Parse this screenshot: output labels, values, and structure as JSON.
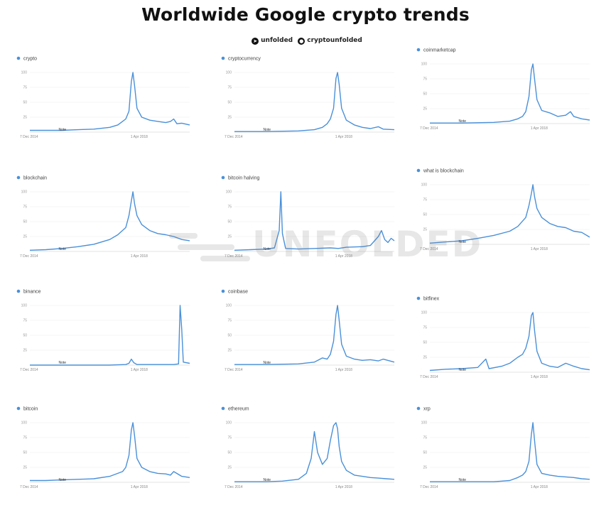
{
  "title": "Worldwide Google crypto trends",
  "credits": {
    "telegram_icon": "telegram-icon",
    "telegram_handle": "unfolded",
    "twitter_icon": "twitter-icon",
    "twitter_handle": "cryptounfolded"
  },
  "watermark": "UNFOLDED",
  "colors": {
    "series": "#4a90d9",
    "grid": "#ececec",
    "axis": "#c8c8c8"
  },
  "chart_data": [
    {
      "type": "line",
      "series_name": "crypto",
      "y_ticks": [
        25,
        50,
        75,
        100
      ],
      "x_labels": [
        "7 Dec 2014",
        "1 Apr 2018"
      ],
      "annotation": "Note",
      "ylim": [
        0,
        100
      ],
      "points": [
        [
          0,
          3
        ],
        [
          0.1,
          3
        ],
        [
          0.2,
          3
        ],
        [
          0.3,
          4
        ],
        [
          0.4,
          5
        ],
        [
          0.5,
          8
        ],
        [
          0.55,
          12
        ],
        [
          0.58,
          18
        ],
        [
          0.6,
          22
        ],
        [
          0.62,
          35
        ],
        [
          0.635,
          85
        ],
        [
          0.645,
          100
        ],
        [
          0.655,
          78
        ],
        [
          0.67,
          40
        ],
        [
          0.7,
          25
        ],
        [
          0.75,
          20
        ],
        [
          0.8,
          18
        ],
        [
          0.85,
          16
        ],
        [
          0.88,
          18
        ],
        [
          0.9,
          22
        ],
        [
          0.92,
          14
        ],
        [
          0.95,
          15
        ],
        [
          1,
          12
        ]
      ]
    },
    {
      "type": "line",
      "series_name": "cryptocurrency",
      "y_ticks": [
        25,
        50,
        75,
        100
      ],
      "x_labels": [
        "7 Dec 2014",
        "1 Apr 2018"
      ],
      "annotation": "Note",
      "ylim": [
        0,
        100
      ],
      "points": [
        [
          0,
          1
        ],
        [
          0.2,
          1
        ],
        [
          0.4,
          2
        ],
        [
          0.5,
          4
        ],
        [
          0.55,
          8
        ],
        [
          0.58,
          14
        ],
        [
          0.6,
          22
        ],
        [
          0.62,
          40
        ],
        [
          0.635,
          90
        ],
        [
          0.645,
          100
        ],
        [
          0.655,
          80
        ],
        [
          0.67,
          40
        ],
        [
          0.7,
          20
        ],
        [
          0.75,
          12
        ],
        [
          0.8,
          8
        ],
        [
          0.85,
          6
        ],
        [
          0.9,
          9
        ],
        [
          0.93,
          5
        ],
        [
          1,
          4
        ]
      ]
    },
    {
      "type": "line",
      "series_name": "coinmarketcap",
      "y_ticks": [
        25,
        50,
        75,
        100
      ],
      "x_labels": [
        "7 Dec 2014",
        "1 Apr 2018"
      ],
      "annotation": "Note",
      "ylim": [
        0,
        100
      ],
      "points": [
        [
          0,
          1
        ],
        [
          0.2,
          1
        ],
        [
          0.4,
          2
        ],
        [
          0.5,
          4
        ],
        [
          0.55,
          8
        ],
        [
          0.58,
          12
        ],
        [
          0.6,
          20
        ],
        [
          0.62,
          45
        ],
        [
          0.635,
          90
        ],
        [
          0.645,
          100
        ],
        [
          0.655,
          75
        ],
        [
          0.67,
          40
        ],
        [
          0.7,
          22
        ],
        [
          0.75,
          18
        ],
        [
          0.8,
          12
        ],
        [
          0.85,
          14
        ],
        [
          0.88,
          20
        ],
        [
          0.9,
          12
        ],
        [
          0.95,
          8
        ],
        [
          1,
          6
        ]
      ]
    },
    {
      "type": "line",
      "series_name": "blockchain",
      "y_ticks": [
        25,
        50,
        75,
        100
      ],
      "x_labels": [
        "7 Dec 2014",
        "1 Apr 2018"
      ],
      "annotation": "Note",
      "ylim": [
        0,
        100
      ],
      "points": [
        [
          0,
          2
        ],
        [
          0.1,
          3
        ],
        [
          0.2,
          5
        ],
        [
          0.3,
          8
        ],
        [
          0.4,
          12
        ],
        [
          0.5,
          20
        ],
        [
          0.55,
          28
        ],
        [
          0.6,
          40
        ],
        [
          0.62,
          60
        ],
        [
          0.635,
          85
        ],
        [
          0.645,
          100
        ],
        [
          0.655,
          80
        ],
        [
          0.67,
          60
        ],
        [
          0.7,
          45
        ],
        [
          0.75,
          35
        ],
        [
          0.8,
          30
        ],
        [
          0.85,
          28
        ],
        [
          0.9,
          25
        ],
        [
          0.95,
          20
        ],
        [
          1,
          18
        ]
      ]
    },
    {
      "type": "line",
      "series_name": "bitcoin halving",
      "y_ticks": [
        25,
        50,
        75,
        100
      ],
      "x_labels": [
        "7 Dec 2014",
        "1 Apr 2018"
      ],
      "annotation": "Note",
      "ylim": [
        0,
        100
      ],
      "points": [
        [
          0,
          2
        ],
        [
          0.1,
          3
        ],
        [
          0.2,
          4
        ],
        [
          0.25,
          6
        ],
        [
          0.28,
          35
        ],
        [
          0.29,
          100
        ],
        [
          0.3,
          30
        ],
        [
          0.32,
          5
        ],
        [
          0.4,
          4
        ],
        [
          0.5,
          5
        ],
        [
          0.6,
          6
        ],
        [
          0.65,
          5
        ],
        [
          0.7,
          7
        ],
        [
          0.8,
          8
        ],
        [
          0.85,
          10
        ],
        [
          0.9,
          25
        ],
        [
          0.92,
          35
        ],
        [
          0.94,
          20
        ],
        [
          0.96,
          15
        ],
        [
          0.98,
          22
        ],
        [
          1,
          18
        ]
      ]
    },
    {
      "type": "line",
      "series_name": "what is blockchain",
      "y_ticks": [
        25,
        50,
        75,
        100
      ],
      "x_labels": [
        "7 Dec 2014",
        "1 Apr 2018"
      ],
      "annotation": "Note",
      "ylim": [
        0,
        100
      ],
      "points": [
        [
          0,
          2
        ],
        [
          0.1,
          4
        ],
        [
          0.2,
          6
        ],
        [
          0.3,
          10
        ],
        [
          0.4,
          15
        ],
        [
          0.5,
          22
        ],
        [
          0.55,
          30
        ],
        [
          0.6,
          45
        ],
        [
          0.62,
          65
        ],
        [
          0.635,
          85
        ],
        [
          0.645,
          100
        ],
        [
          0.655,
          80
        ],
        [
          0.67,
          60
        ],
        [
          0.7,
          45
        ],
        [
          0.75,
          35
        ],
        [
          0.8,
          30
        ],
        [
          0.85,
          28
        ],
        [
          0.9,
          22
        ],
        [
          0.95,
          20
        ],
        [
          1,
          12
        ]
      ]
    },
    {
      "type": "line",
      "series_name": "binance",
      "y_ticks": [
        25,
        50,
        75,
        100
      ],
      "x_labels": [
        "7 Dec 2014",
        "1 Apr 2018"
      ],
      "annotation": "Note",
      "ylim": [
        0,
        100
      ],
      "points": [
        [
          0,
          0
        ],
        [
          0.3,
          0
        ],
        [
          0.5,
          0
        ],
        [
          0.6,
          1
        ],
        [
          0.62,
          3
        ],
        [
          0.635,
          10
        ],
        [
          0.65,
          4
        ],
        [
          0.67,
          1
        ],
        [
          0.8,
          1
        ],
        [
          0.9,
          1
        ],
        [
          0.93,
          2
        ],
        [
          0.94,
          100
        ],
        [
          0.95,
          60
        ],
        [
          0.96,
          5
        ],
        [
          1,
          3
        ]
      ]
    },
    {
      "type": "line",
      "series_name": "coinbase",
      "y_ticks": [
        25,
        50,
        75,
        100
      ],
      "x_labels": [
        "7 Dec 2014",
        "1 Apr 2018"
      ],
      "annotation": "Note",
      "ylim": [
        0,
        100
      ],
      "points": [
        [
          0,
          1
        ],
        [
          0.2,
          1
        ],
        [
          0.4,
          2
        ],
        [
          0.5,
          5
        ],
        [
          0.55,
          12
        ],
        [
          0.58,
          10
        ],
        [
          0.6,
          18
        ],
        [
          0.62,
          40
        ],
        [
          0.635,
          85
        ],
        [
          0.645,
          100
        ],
        [
          0.655,
          75
        ],
        [
          0.67,
          35
        ],
        [
          0.7,
          15
        ],
        [
          0.75,
          10
        ],
        [
          0.8,
          8
        ],
        [
          0.85,
          9
        ],
        [
          0.9,
          7
        ],
        [
          0.93,
          10
        ],
        [
          1,
          5
        ]
      ]
    },
    {
      "type": "line",
      "series_name": "bitfinex",
      "y_ticks": [
        25,
        50,
        75,
        100
      ],
      "x_labels": [
        "7 Dec 2014",
        "1 Apr 2018"
      ],
      "annotation": "Note",
      "ylim": [
        0,
        100
      ],
      "points": [
        [
          0,
          3
        ],
        [
          0.1,
          5
        ],
        [
          0.2,
          6
        ],
        [
          0.3,
          8
        ],
        [
          0.35,
          22
        ],
        [
          0.37,
          6
        ],
        [
          0.45,
          10
        ],
        [
          0.5,
          15
        ],
        [
          0.55,
          25
        ],
        [
          0.58,
          30
        ],
        [
          0.6,
          40
        ],
        [
          0.62,
          60
        ],
        [
          0.635,
          95
        ],
        [
          0.645,
          100
        ],
        [
          0.655,
          70
        ],
        [
          0.67,
          35
        ],
        [
          0.7,
          15
        ],
        [
          0.75,
          10
        ],
        [
          0.8,
          8
        ],
        [
          0.85,
          15
        ],
        [
          0.9,
          10
        ],
        [
          0.95,
          6
        ],
        [
          1,
          4
        ]
      ]
    },
    {
      "type": "line",
      "series_name": "bitcoin",
      "y_ticks": [
        25,
        50,
        75,
        100
      ],
      "x_labels": [
        "7 Dec 2014",
        "1 Apr 2018"
      ],
      "annotation": "Note",
      "ylim": [
        0,
        100
      ],
      "points": [
        [
          0,
          3
        ],
        [
          0.1,
          3
        ],
        [
          0.2,
          4
        ],
        [
          0.3,
          5
        ],
        [
          0.4,
          6
        ],
        [
          0.5,
          10
        ],
        [
          0.55,
          15
        ],
        [
          0.58,
          18
        ],
        [
          0.6,
          25
        ],
        [
          0.62,
          45
        ],
        [
          0.635,
          88
        ],
        [
          0.645,
          100
        ],
        [
          0.655,
          78
        ],
        [
          0.67,
          40
        ],
        [
          0.7,
          25
        ],
        [
          0.75,
          18
        ],
        [
          0.8,
          15
        ],
        [
          0.85,
          14
        ],
        [
          0.88,
          12
        ],
        [
          0.9,
          18
        ],
        [
          0.95,
          10
        ],
        [
          1,
          8
        ]
      ]
    },
    {
      "type": "line",
      "series_name": "ethereum",
      "y_ticks": [
        25,
        50,
        75,
        100
      ],
      "x_labels": [
        "7 Dec 2014",
        "1 Apr 2018"
      ],
      "annotation": "Note",
      "ylim": [
        0,
        100
      ],
      "points": [
        [
          0,
          1
        ],
        [
          0.2,
          1
        ],
        [
          0.3,
          2
        ],
        [
          0.4,
          5
        ],
        [
          0.45,
          15
        ],
        [
          0.48,
          40
        ],
        [
          0.5,
          85
        ],
        [
          0.52,
          50
        ],
        [
          0.55,
          30
        ],
        [
          0.58,
          40
        ],
        [
          0.6,
          70
        ],
        [
          0.62,
          95
        ],
        [
          0.635,
          100
        ],
        [
          0.645,
          90
        ],
        [
          0.655,
          60
        ],
        [
          0.67,
          35
        ],
        [
          0.7,
          20
        ],
        [
          0.75,
          12
        ],
        [
          0.8,
          10
        ],
        [
          0.85,
          8
        ],
        [
          0.9,
          7
        ],
        [
          0.95,
          6
        ],
        [
          1,
          5
        ]
      ]
    },
    {
      "type": "line",
      "series_name": "xrp",
      "y_ticks": [
        25,
        50,
        75,
        100
      ],
      "x_labels": [
        "7 Dec 2014",
        "1 Apr 2018"
      ],
      "annotation": "Note",
      "ylim": [
        0,
        100
      ],
      "points": [
        [
          0,
          1
        ],
        [
          0.2,
          1
        ],
        [
          0.4,
          1
        ],
        [
          0.5,
          3
        ],
        [
          0.55,
          8
        ],
        [
          0.58,
          12
        ],
        [
          0.6,
          18
        ],
        [
          0.62,
          35
        ],
        [
          0.635,
          80
        ],
        [
          0.645,
          100
        ],
        [
          0.655,
          70
        ],
        [
          0.67,
          30
        ],
        [
          0.7,
          15
        ],
        [
          0.75,
          12
        ],
        [
          0.8,
          10
        ],
        [
          0.85,
          9
        ],
        [
          0.9,
          8
        ],
        [
          0.95,
          6
        ],
        [
          1,
          5
        ]
      ]
    }
  ]
}
